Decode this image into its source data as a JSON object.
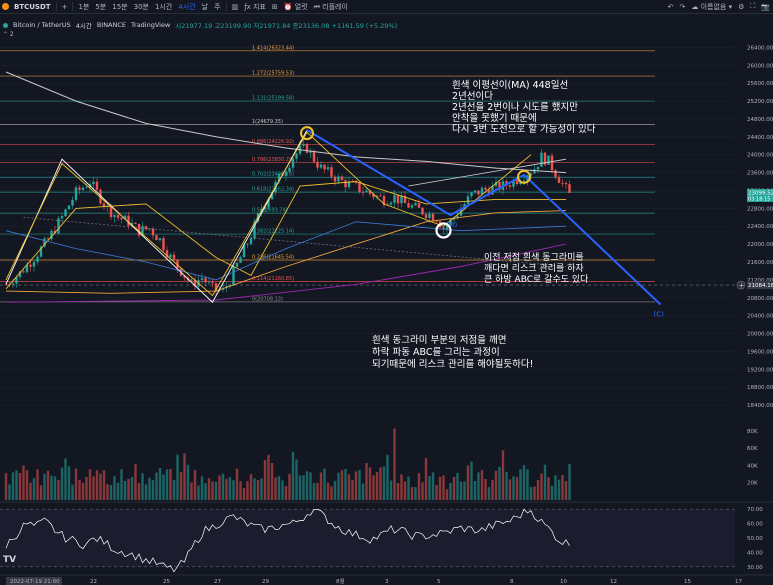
{
  "topbar": {
    "symbol": "BTCUSDT",
    "plus": "+",
    "intervals": [
      "1분",
      "5분",
      "15분",
      "30분",
      "1시간",
      "4시간",
      "날",
      "주"
    ],
    "active_interval": "4시간",
    "indicators": "지표",
    "alert": "얼럿",
    "replay": "리플레이",
    "unnamed": "이름없음"
  },
  "legend": {
    "pair": "Bitcoin / TetherUS",
    "interval": "4시간",
    "exchange": "BINANCE",
    "source": "TradingView",
    "ohlc": "시21977.19 고23199.90 저21971.84 종23136.08 +1161.59 (+5.29%)",
    "collapse": "⌃ 2"
  },
  "colors": {
    "bg": "#131722",
    "up": "#26a69a",
    "down": "#ef5350",
    "grid": "#1e222d",
    "white_ma": "#c9c9c9",
    "yellow_ma": "#f2c12e",
    "orange_ma": "#f0a33a",
    "purple_ma": "#9c27b0",
    "blue_wave": "#2962ff",
    "rsi": "#ffffff"
  },
  "chart_data": {
    "type": "candlestick",
    "price_axis": {
      "ticks": [
        "26400.00",
        "26000.00",
        "25600.00",
        "25200.00",
        "24800.00",
        "24400.00",
        "24000.00",
        "23600.00",
        "23200.00",
        "22800.00",
        "22400.00",
        "22000.00",
        "21600.00",
        "21200.00",
        "20800.00",
        "20400.00",
        "20000.00",
        "19600.00",
        "19200.00",
        "18800.00",
        "18400.00"
      ],
      "current_price": "23099.52",
      "countdown": "03:18:15",
      "crosshair_price": "21084.16",
      "range": [
        18200,
        26700
      ]
    },
    "volume_axis": {
      "ticks": [
        "80K",
        "60K",
        "40K",
        "20K"
      ]
    },
    "rsi_axis": {
      "ticks": [
        "70.00",
        "60.00",
        "50.00",
        "40.00",
        "30.00"
      ],
      "range": [
        25,
        75
      ]
    },
    "time_axis": {
      "labels": [
        "2022-07-19  21:00",
        "22",
        "25",
        "27",
        "29",
        "8월",
        "3",
        "5",
        "8",
        "10",
        "12",
        "15",
        "17"
      ]
    },
    "fibonacci": [
      {
        "label": "1.414(26323.44)",
        "price": 26323.44,
        "color": "#f0a33a"
      },
      {
        "label": "1.272(25759.53)",
        "price": 25759.53,
        "color": "#f0a33a"
      },
      {
        "label": "1.131(25199.58)",
        "price": 25199.58,
        "color": "#26a69a"
      },
      {
        "label": "1(24679.35)",
        "price": 24679.35,
        "color": "#c9c9c9"
      },
      {
        "label": "0.886(24226.92)",
        "price": 24226.92,
        "color": "#ef5350"
      },
      {
        "label": "0.786(23830.29)",
        "price": 23830.29,
        "color": "#ef5350"
      },
      {
        "label": "0.702(23496.16)",
        "price": 23496.16,
        "color": "#26a69a"
      },
      {
        "label": "0.618(23162.34)",
        "price": 23162.34,
        "color": "#26a69a"
      },
      {
        "label": "0.5(22693.74)",
        "price": 22693.74,
        "color": "#26a69a"
      },
      {
        "label": "0.382(22225.14)",
        "price": 22225.14,
        "color": "#26a69a"
      },
      {
        "label": "0.236(21645.54)",
        "price": 21645.54,
        "color": "#f0a33a"
      },
      {
        "label": "0.114(21160.85)",
        "price": 21160.85,
        "color": "#ef5350"
      },
      {
        "label": "0(20708.13)",
        "price": 20708.13,
        "color": "#888888"
      }
    ],
    "price_path": [
      [
        0,
        21100
      ],
      [
        4,
        21350
      ],
      [
        8,
        21700
      ],
      [
        12,
        22100
      ],
      [
        16,
        22600
      ],
      [
        20,
        23150
      ],
      [
        24,
        23400
      ],
      [
        26,
        23150
      ],
      [
        29,
        22800
      ],
      [
        32,
        22600
      ],
      [
        35,
        22500
      ],
      [
        38,
        22300
      ],
      [
        41,
        22350
      ],
      [
        44,
        22100
      ],
      [
        47,
        21700
      ],
      [
        50,
        21400
      ],
      [
        53,
        21100
      ],
      [
        56,
        21250
      ],
      [
        59,
        21000
      ],
      [
        62,
        20950
      ],
      [
        64,
        21200
      ],
      [
        67,
        21700
      ],
      [
        70,
        22200
      ],
      [
        73,
        22800
      ],
      [
        76,
        23200
      ],
      [
        79,
        23600
      ],
      [
        82,
        23950
      ],
      [
        84,
        24100
      ],
      [
        86,
        24150
      ],
      [
        88,
        23900
      ],
      [
        90,
        23700
      ],
      [
        93,
        23550
      ],
      [
        96,
        23400
      ],
      [
        99,
        23300
      ],
      [
        102,
        23200
      ],
      [
        105,
        23100
      ],
      [
        108,
        23000
      ],
      [
        111,
        23050
      ],
      [
        114,
        22900
      ],
      [
        117,
        22800
      ],
      [
        120,
        22700
      ],
      [
        123,
        22600
      ],
      [
        125,
        22350
      ],
      [
        127,
        22500
      ],
      [
        130,
        22800
      ],
      [
        133,
        23100
      ],
      [
        136,
        23200
      ],
      [
        139,
        23250
      ],
      [
        142,
        23300
      ],
      [
        145,
        23400
      ],
      [
        148,
        23550
      ],
      [
        151,
        23700
      ],
      [
        153,
        23950
      ],
      [
        155,
        23850
      ],
      [
        157,
        23600
      ],
      [
        159,
        23350
      ],
      [
        161,
        23100
      ]
    ],
    "ma448_white": [
      [
        0,
        25850
      ],
      [
        20,
        25200
      ],
      [
        40,
        24700
      ],
      [
        60,
        24400
      ],
      [
        80,
        24150
      ],
      [
        100,
        23950
      ],
      [
        120,
        23850
      ],
      [
        140,
        23700
      ],
      [
        160,
        23600
      ]
    ],
    "ma_orange": [
      [
        0,
        20950
      ],
      [
        30,
        20900
      ],
      [
        60,
        20950
      ],
      [
        80,
        21500
      ],
      [
        100,
        22000
      ],
      [
        120,
        22500
      ],
      [
        140,
        22700
      ],
      [
        160,
        22750
      ]
    ],
    "ma_purple": [
      [
        0,
        20700
      ],
      [
        60,
        20750
      ],
      [
        100,
        21100
      ],
      [
        130,
        21500
      ],
      [
        160,
        22000
      ]
    ],
    "ma_yellow": [
      [
        0,
        21000
      ],
      [
        20,
        22800
      ],
      [
        40,
        22900
      ],
      [
        60,
        21700
      ],
      [
        70,
        21300
      ],
      [
        84,
        23300
      ],
      [
        100,
        23400
      ],
      [
        120,
        22900
      ],
      [
        140,
        23000
      ],
      [
        160,
        23000
      ]
    ],
    "wave_abc": [
      [
        86,
        24550
      ],
      [
        127,
        22650
      ],
      [
        148,
        23550
      ],
      [
        187,
        20650
      ]
    ],
    "wave_label_a": "(A)",
    "wave_label_c": "(C)",
    "rsi_values": [
      45,
      52,
      60,
      58,
      62,
      55,
      50,
      48,
      45,
      50,
      47,
      42,
      40,
      38,
      35,
      33,
      30,
      28,
      33,
      45,
      55,
      58,
      62,
      65,
      61,
      58,
      56,
      57,
      59,
      60,
      64,
      70,
      66,
      60,
      56,
      53,
      51,
      49,
      52,
      56,
      55,
      52,
      51,
      52,
      53,
      55,
      57,
      56,
      55,
      58,
      60,
      62,
      66,
      70,
      62,
      56,
      48,
      46
    ],
    "volume_values": [
      22,
      18,
      30,
      25,
      40,
      35,
      28,
      22,
      30,
      26,
      20,
      24,
      28,
      32,
      26,
      22,
      30,
      38,
      34,
      28,
      26,
      24,
      22,
      30,
      45,
      38,
      42,
      35,
      30,
      28,
      26,
      32,
      30,
      28,
      24,
      22,
      20,
      26,
      30,
      28,
      24,
      22,
      26,
      30,
      28,
      32,
      30,
      26,
      34,
      38,
      40,
      44,
      36,
      30,
      28,
      24,
      22,
      20
    ],
    "annotations": {
      "ma_note_1": "흰색 이평선이(MA) 448일선",
      "ma_note_2": "2년선이다",
      "ma_note_3": "2년선을 2번이나 시도를 했지만",
      "ma_note_4": "안착을 못했기 때문에",
      "ma_note_5": "다시 3번 도전으로 할 가능성이 있다",
      "risk_note_1": "이전 저점 흰색 동그라미를",
      "risk_note_2": "깨다면 리스크 관리를 하자",
      "risk_note_3": "큰 하방 ABC로 갈수도 있다",
      "abc_note_1": "흰색 동그라미 부분의 저점을 깨면",
      "abc_note_2": "하락 파동 ABC를 그리는 과정이",
      "abc_note_3": "되기때문에 리스크 관리를 해야될듯하다!"
    }
  }
}
